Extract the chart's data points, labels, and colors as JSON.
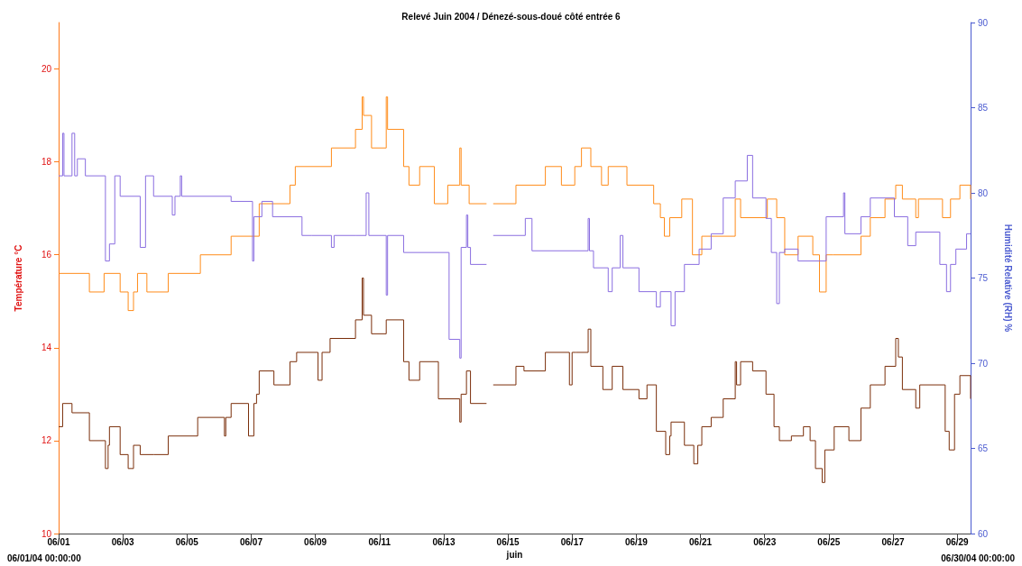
{
  "chart_data": {
    "type": "step",
    "title": "Relevé Juin 2004 / Dénezé-sous-doué côté entrée 6",
    "xlabel": "juin",
    "ylabel": "Température °C",
    "y2label": "Humidité Relative (RH) %",
    "annotations": [
      "06/01/04 00:00:00",
      "06/30/04 00:00:00"
    ],
    "xlim": [
      "2004-06-01T00:00",
      "2004-06-29T10:00"
    ],
    "xticks": [
      {
        "value": "2004-06-01",
        "label": "06/01"
      },
      {
        "value": "2004-06-03",
        "label": "06/03"
      },
      {
        "value": "2004-06-05",
        "label": "06/05"
      },
      {
        "value": "2004-06-07",
        "label": "06/07"
      },
      {
        "value": "2004-06-09",
        "label": "06/09"
      },
      {
        "value": "2004-06-11",
        "label": "06/11"
      },
      {
        "value": "2004-06-13",
        "label": "06/13"
      },
      {
        "value": "2004-06-15",
        "label": "06/15"
      },
      {
        "value": "2004-06-17",
        "label": "06/17"
      },
      {
        "value": "2004-06-19",
        "label": "06/19"
      },
      {
        "value": "2004-06-21",
        "label": "06/21"
      },
      {
        "value": "2004-06-23",
        "label": "06/23"
      },
      {
        "value": "2004-06-25",
        "label": "06/25"
      },
      {
        "value": "2004-06-27",
        "label": "06/27"
      },
      {
        "value": "2004-06-29",
        "label": "06/29"
      }
    ],
    "ylim": [
      10,
      21
    ],
    "yticks": [
      10,
      12,
      14,
      16,
      18,
      20
    ],
    "y2lim": [
      60,
      90
    ],
    "y2ticks": [
      60,
      65,
      70,
      75,
      80,
      85,
      90
    ],
    "grid": false,
    "series": [
      {
        "color": "#ff8c1a",
        "x": [
          "2004-06-01T00:00",
          "2004-06-01T23:00",
          "2004-06-02T10:00",
          "2004-06-02T22:00",
          "2004-06-03T04:00",
          "2004-06-03T08:00",
          "2004-06-03T11:00",
          "2004-06-03T18:00",
          "2004-06-04T10:00",
          "2004-06-05T10:00",
          "2004-06-06T09:00",
          "2004-06-07T06:00",
          "2004-06-08T05:00",
          "2004-06-08T09:00",
          "2004-06-09T12:00",
          "2004-06-10T06:00",
          "2004-06-10T11:00",
          "2004-06-10T12:00",
          "2004-06-10T18:00",
          "2004-06-11T05:00",
          "2004-06-11T06:00",
          "2004-06-11T18:00",
          "2004-06-11T22:00",
          "2004-06-12T06:00",
          "2004-06-12T17:00",
          "2004-06-13T03:00",
          "2004-06-13T12:00",
          "2004-06-13T13:00",
          "2004-06-13T19:00",
          "2004-06-14T08:00",
          "2004-06-14T13:00",
          "2004-06-15T06:00",
          "2004-06-16T04:00",
          "2004-06-16T16:00",
          "2004-06-17T02:00",
          "2004-06-17T07:00",
          "2004-06-17T14:00",
          "2004-06-17T22:00",
          "2004-06-18T03:00",
          "2004-06-18T17:00",
          "2004-06-19T13:00",
          "2004-06-19T18:00",
          "2004-06-19T21:00",
          "2004-06-20T01:00",
          "2004-06-20T10:00",
          "2004-06-20T18:00",
          "2004-06-21T01:00",
          "2004-06-22T02:00",
          "2004-06-22T06:00",
          "2004-06-23T02:00",
          "2004-06-23T09:00",
          "2004-06-23T15:00",
          "2004-06-24T01:00",
          "2004-06-24T12:00",
          "2004-06-24T17:00",
          "2004-06-24T22:00",
          "2004-06-25T03:00",
          "2004-06-26T00:00",
          "2004-06-26T07:00",
          "2004-06-26T18:00",
          "2004-06-27T02:00",
          "2004-06-27T07:00",
          "2004-06-27T17:00",
          "2004-06-27T19:00",
          "2004-06-28T13:00",
          "2004-06-28T19:00",
          "2004-06-29T02:00",
          "2004-06-29T10:00"
        ],
        "values": [
          15.6,
          15.2,
          15.6,
          15.2,
          14.8,
          15.2,
          15.6,
          15.2,
          15.6,
          16.0,
          16.4,
          17.1,
          17.5,
          17.9,
          18.3,
          18.7,
          19.4,
          19.0,
          18.3,
          19.4,
          18.7,
          17.9,
          17.5,
          17.9,
          17.1,
          17.5,
          18.3,
          17.5,
          17.1,
          null,
          17.1,
          17.5,
          17.9,
          17.5,
          17.9,
          18.3,
          17.9,
          17.5,
          17.9,
          17.5,
          17.1,
          16.8,
          16.4,
          16.8,
          17.2,
          16.0,
          16.4,
          17.2,
          16.8,
          17.2,
          16.8,
          16.0,
          16.4,
          16.0,
          15.2,
          16.0,
          16.0,
          16.4,
          16.8,
          17.2,
          17.5,
          17.2,
          16.8,
          17.2,
          16.8,
          17.2,
          17.5,
          17.2
        ]
      },
      {
        "color": "#7a2e0a",
        "x": [
          "2004-06-01T00:00",
          "2004-06-01T03:00",
          "2004-06-01T10:00",
          "2004-06-01T23:00",
          "2004-06-02T11:00",
          "2004-06-02T13:00",
          "2004-06-02T14:00",
          "2004-06-02T22:00",
          "2004-06-03T04:00",
          "2004-06-03T08:00",
          "2004-06-03T13:00",
          "2004-06-03T23:00",
          "2004-06-04T10:00",
          "2004-06-05T08:00",
          "2004-06-06T04:00",
          "2004-06-06T05:00",
          "2004-06-06T09:00",
          "2004-06-06T22:00",
          "2004-06-07T02:00",
          "2004-06-07T04:00",
          "2004-06-07T06:00",
          "2004-06-07T17:00",
          "2004-06-08T05:00",
          "2004-06-08T10:00",
          "2004-06-09T02:00",
          "2004-06-09T05:00",
          "2004-06-09T11:00",
          "2004-06-10T06:00",
          "2004-06-10T11:00",
          "2004-06-10T12:00",
          "2004-06-10T18:00",
          "2004-06-11T05:00",
          "2004-06-11T18:00",
          "2004-06-11T22:00",
          "2004-06-12T06:00",
          "2004-06-12T20:00",
          "2004-06-13T12:00",
          "2004-06-13T13:00",
          "2004-06-13T17:00",
          "2004-06-13T20:00",
          "2004-06-14T08:00",
          "2004-06-14T13:00",
          "2004-06-15T06:00",
          "2004-06-15T12:00",
          "2004-06-16T04:00",
          "2004-06-16T22:00",
          "2004-06-17T00:00",
          "2004-06-17T03:00",
          "2004-06-17T12:00",
          "2004-06-17T14:00",
          "2004-06-17T23:00",
          "2004-06-18T06:00",
          "2004-06-18T14:00",
          "2004-06-19T02:00",
          "2004-06-19T08:00",
          "2004-06-19T15:00",
          "2004-06-19T22:00",
          "2004-06-20T01:00",
          "2004-06-20T02:00",
          "2004-06-20T12:00",
          "2004-06-20T19:00",
          "2004-06-20T22:00",
          "2004-06-21T01:00",
          "2004-06-21T08:00",
          "2004-06-21T17:00",
          "2004-06-22T02:00",
          "2004-06-22T03:00",
          "2004-06-22T06:00",
          "2004-06-22T15:00",
          "2004-06-23T01:00",
          "2004-06-23T07:00",
          "2004-06-23T11:00",
          "2004-06-23T20:00",
          "2004-06-24T05:00",
          "2004-06-24T10:00",
          "2004-06-24T14:00",
          "2004-06-24T19:00",
          "2004-06-24T21:00",
          "2004-06-25T04:00",
          "2004-06-25T15:00",
          "2004-06-26T00:00",
          "2004-06-26T07:00",
          "2004-06-26T18:00",
          "2004-06-27T02:00",
          "2004-06-27T04:00",
          "2004-06-27T07:00",
          "2004-06-27T17:00",
          "2004-06-27T20:00",
          "2004-06-28T15:00",
          "2004-06-28T18:00",
          "2004-06-28T22:00",
          "2004-06-29T02:00",
          "2004-06-29T10:00"
        ],
        "values": [
          12.3,
          12.8,
          12.6,
          12.0,
          11.4,
          11.9,
          12.3,
          11.7,
          11.4,
          11.9,
          11.7,
          11.7,
          12.1,
          12.5,
          12.1,
          12.5,
          12.8,
          12.1,
          12.8,
          13.0,
          13.5,
          13.2,
          13.7,
          13.9,
          13.3,
          13.9,
          14.2,
          14.6,
          15.5,
          14.7,
          14.3,
          14.6,
          13.7,
          13.3,
          13.7,
          12.9,
          12.4,
          13.0,
          13.5,
          12.8,
          null,
          13.2,
          13.6,
          13.5,
          13.9,
          13.2,
          13.9,
          13.9,
          14.4,
          13.6,
          13.1,
          13.6,
          13.1,
          12.9,
          13.2,
          12.2,
          11.7,
          12.1,
          12.4,
          11.9,
          11.5,
          11.9,
          12.3,
          12.5,
          12.9,
          13.7,
          13.2,
          13.7,
          13.5,
          13.0,
          12.3,
          12.0,
          12.1,
          12.3,
          12.0,
          11.4,
          11.1,
          11.8,
          12.3,
          12.0,
          12.7,
          13.2,
          13.6,
          14.2,
          13.8,
          13.1,
          12.7,
          13.2,
          12.2,
          11.8,
          13.0,
          13.4,
          12.9
        ]
      },
      {
        "color": "#8a6ee0",
        "axis": "y2",
        "x": [
          "2004-06-01T00:00",
          "2004-06-01T03:00",
          "2004-06-01T04:00",
          "2004-06-01T10:00",
          "2004-06-01T12:00",
          "2004-06-01T14:00",
          "2004-06-01T20:00",
          "2004-06-02T11:00",
          "2004-06-02T14:00",
          "2004-06-02T18:00",
          "2004-06-02T22:00",
          "2004-06-03T13:00",
          "2004-06-03T17:00",
          "2004-06-03T23:00",
          "2004-06-04T13:00",
          "2004-06-04T15:00",
          "2004-06-04T19:00",
          "2004-06-04T20:00",
          "2004-06-06T09:00",
          "2004-06-07T01:00",
          "2004-06-07T02:00",
          "2004-06-07T08:00",
          "2004-06-07T16:00",
          "2004-06-08T14:00",
          "2004-06-08T21:00",
          "2004-06-09T12:00",
          "2004-06-09T14:00",
          "2004-06-10T06:00",
          "2004-06-10T14:00",
          "2004-06-10T16:00",
          "2004-06-11T05:00",
          "2004-06-11T06:00",
          "2004-06-11T18:00",
          "2004-06-13T04:00",
          "2004-06-13T12:00",
          "2004-06-13T13:00",
          "2004-06-13T17:00",
          "2004-06-13T18:00",
          "2004-06-13T20:00",
          "2004-06-14T08:00",
          "2004-06-14T13:00",
          "2004-06-15T13:00",
          "2004-06-15T18:00",
          "2004-06-17T12:00",
          "2004-06-17T13:00",
          "2004-06-17T16:00",
          "2004-06-18T03:00",
          "2004-06-18T06:00",
          "2004-06-18T12:00",
          "2004-06-18T14:00",
          "2004-06-19T02:00",
          "2004-06-19T15:00",
          "2004-06-19T18:00",
          "2004-06-20T02:00",
          "2004-06-20T05:00",
          "2004-06-20T12:00",
          "2004-06-20T23:00",
          "2004-06-21T08:00",
          "2004-06-21T17:00",
          "2004-06-22T02:00",
          "2004-06-22T11:00",
          "2004-06-22T15:00",
          "2004-06-23T01:00",
          "2004-06-23T05:00",
          "2004-06-23T09:00",
          "2004-06-23T11:00",
          "2004-06-23T15:00",
          "2004-06-24T01:00",
          "2004-06-24T22:00",
          "2004-06-25T11:00",
          "2004-06-25T12:00",
          "2004-06-26T00:00",
          "2004-06-26T07:00",
          "2004-06-27T01:00",
          "2004-06-27T11:00",
          "2004-06-27T17:00",
          "2004-06-28T11:00",
          "2004-06-28T16:00",
          "2004-06-28T19:00",
          "2004-06-28T23:00",
          "2004-06-29T07:00",
          "2004-06-29T10:00"
        ],
        "values": [
          81.0,
          83.5,
          81.0,
          83.5,
          81.0,
          82.0,
          81.0,
          76.0,
          77.0,
          81.0,
          79.8,
          76.8,
          81.0,
          79.8,
          78.7,
          79.8,
          81.0,
          79.8,
          79.5,
          76.0,
          78.6,
          79.5,
          78.6,
          77.5,
          77.5,
          76.8,
          77.5,
          77.5,
          80.0,
          77.5,
          74.0,
          77.5,
          76.5,
          71.4,
          70.3,
          76.8,
          78.7,
          76.8,
          75.8,
          null,
          77.5,
          78.5,
          76.6,
          78.5,
          76.6,
          75.6,
          74.2,
          75.6,
          77.5,
          75.6,
          74.2,
          73.3,
          74.2,
          72.2,
          74.2,
          75.8,
          76.7,
          77.6,
          79.7,
          80.7,
          82.2,
          79.7,
          78.5,
          76.5,
          73.5,
          76.5,
          76.7,
          76.0,
          78.6,
          80.0,
          77.6,
          78.6,
          79.7,
          78.6,
          76.9,
          77.7,
          75.8,
          74.2,
          75.8,
          76.7,
          77.6,
          77.6
        ]
      }
    ]
  }
}
